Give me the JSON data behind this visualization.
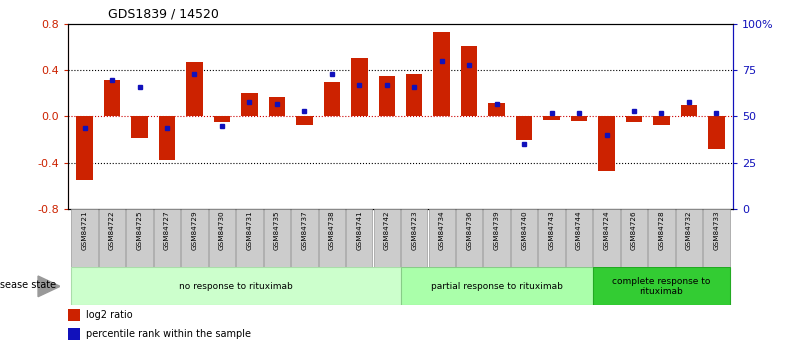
{
  "title": "GDS1839 / 14520",
  "samples": [
    "GSM84721",
    "GSM84722",
    "GSM84725",
    "GSM84727",
    "GSM84729",
    "GSM84730",
    "GSM84731",
    "GSM84735",
    "GSM84737",
    "GSM84738",
    "GSM84741",
    "GSM84742",
    "GSM84723",
    "GSM84734",
    "GSM84736",
    "GSM84739",
    "GSM84740",
    "GSM84743",
    "GSM84744",
    "GSM84724",
    "GSM84726",
    "GSM84728",
    "GSM84732",
    "GSM84733"
  ],
  "log2_ratio": [
    -0.55,
    0.32,
    -0.19,
    -0.38,
    0.47,
    -0.05,
    0.2,
    0.17,
    -0.07,
    0.3,
    0.51,
    0.35,
    0.37,
    0.73,
    0.61,
    0.12,
    -0.2,
    -0.03,
    -0.04,
    -0.47,
    -0.05,
    -0.07,
    0.1,
    -0.28
  ],
  "percentile": [
    44,
    70,
    66,
    44,
    73,
    45,
    58,
    57,
    53,
    73,
    67,
    67,
    66,
    80,
    78,
    57,
    35,
    52,
    52,
    40,
    53,
    52,
    58,
    52
  ],
  "groups": [
    {
      "label": "no response to rituximab",
      "start": 0,
      "end": 12,
      "color": "#ccffcc",
      "edgecolor": "#aaddaa"
    },
    {
      "label": "partial response to rituximab",
      "start": 12,
      "end": 19,
      "color": "#aaffaa",
      "edgecolor": "#88cc88"
    },
    {
      "label": "complete response to\nrituximab",
      "start": 19,
      "end": 24,
      "color": "#33cc33",
      "edgecolor": "#22aa22"
    }
  ],
  "bar_color": "#cc2200",
  "dot_color": "#1111bb",
  "ylim_left": [
    -0.8,
    0.8
  ],
  "ylim_right": [
    0,
    100
  ],
  "yticks_left": [
    -0.8,
    -0.4,
    0.0,
    0.4,
    0.8
  ],
  "yticks_right": [
    0,
    25,
    50,
    75,
    100
  ],
  "ytick_labels_right": [
    "0",
    "25",
    "50",
    "75",
    "100%"
  ],
  "zero_line_color": "#cc0000",
  "grid_color": "#000000",
  "background_color": "#ffffff",
  "disease_state_label": "disease state",
  "legend_items": [
    {
      "label": "log2 ratio",
      "color": "#cc2200"
    },
    {
      "label": "percentile rank within the sample",
      "color": "#1111bb"
    }
  ],
  "sample_box_color": "#cccccc",
  "sample_box_edge": "#999999"
}
